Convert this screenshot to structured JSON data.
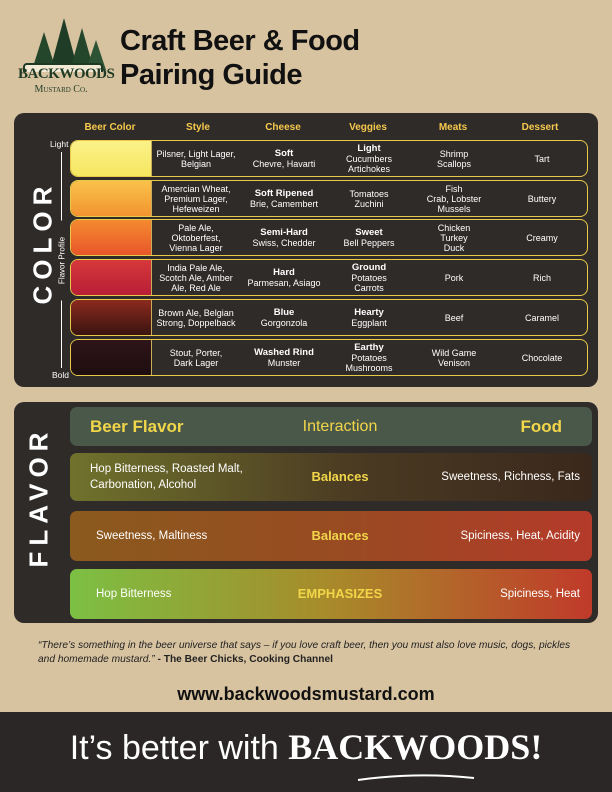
{
  "logo": {
    "name": "BACKWOODS",
    "sub": "Mustard Co."
  },
  "title_lines": [
    "Craft Beer & Food",
    "Pairing Guide"
  ],
  "color_section": {
    "label": "COLOR",
    "axis": {
      "top": "Light",
      "middle": "Flavor Profile",
      "bottom": "Bold"
    },
    "headers": [
      "Beer Color",
      "Style",
      "Cheese",
      "Veggies",
      "Meats",
      "Dessert"
    ],
    "rows": [
      {
        "style": "Pilsner, Light Lager,\nBelgian",
        "cheese": {
          "bold": "Soft",
          "text": "Chevre, Havarti"
        },
        "veggies": {
          "bold": "Light",
          "text": "Cucumbers\nArtichokes"
        },
        "meats": "Shrimp\nScallops",
        "dessert": "Tart"
      },
      {
        "style": "Amercian Wheat,\nPremium Lager,\nHefeweizen",
        "cheese": {
          "bold": "Soft Ripened",
          "text": "Brie, Camembert"
        },
        "veggies": {
          "text": "Tomatoes\nZuchini"
        },
        "meats": "Fish\nCrab, Lobster\nMussels",
        "dessert": "Buttery"
      },
      {
        "style": "Pale Ale,\nOktoberfest,\nVienna Lager",
        "cheese": {
          "bold": "Semi-Hard",
          "text": "Swiss, Chedder"
        },
        "veggies": {
          "bold": "Sweet",
          "text": "Bell Peppers"
        },
        "meats": "Chicken\nTurkey\nDuck",
        "dessert": "Creamy"
      },
      {
        "style": "India Pale Ale,\nScotch Ale, Amber\nAle,  Red Ale",
        "cheese": {
          "bold": "Hard",
          "text": "Parmesan, Asiago"
        },
        "veggies": {
          "bold": "Ground",
          "text": "Potatoes\nCarrots"
        },
        "meats": "Pork",
        "dessert": "Rich"
      },
      {
        "style": "Brown Ale, Belgian\nStrong, Doppelback",
        "cheese": {
          "bold": "Blue",
          "text": "Gorgonzola"
        },
        "veggies": {
          "bold": "Hearty",
          "text": "Eggplant"
        },
        "meats": "Beef",
        "dessert": "Caramel"
      },
      {
        "style": "Stout, Porter,\nDark Lager",
        "cheese": {
          "bold": "Washed Rind",
          "text": "Munster"
        },
        "veggies": {
          "bold": "Earthy",
          "text": "Potatoes\nMushrooms"
        },
        "meats": "Wild Game\nVenison",
        "dessert": "Chocolate"
      }
    ]
  },
  "flavor_section": {
    "label": "FLAVOR",
    "header": [
      "Beer Flavor",
      "Interaction",
      "Food"
    ],
    "rows": [
      [
        "Hop Bitterness, Roasted Malt,\nCarbonation, Alcohol",
        "Balances",
        "Sweetness, Richness, Fats"
      ],
      [
        "Sweetness, Maltiness",
        "Balances",
        "Spiciness, Heat, Acidity"
      ],
      [
        "Hop Bitterness",
        "EMPHASIZES",
        "Spiciness, Heat"
      ]
    ]
  },
  "quote": {
    "text": "“There’s something in the beer universe that says – if you love craft beer, then you must also love music, dogs, pickles and homemade mustard.”",
    "attribution": "- The Beer Chicks, Cooking Channel"
  },
  "url": "www.backwoodsmustard.com",
  "footer": {
    "text": "It’s better with",
    "brand": "BACKWOODS!"
  }
}
